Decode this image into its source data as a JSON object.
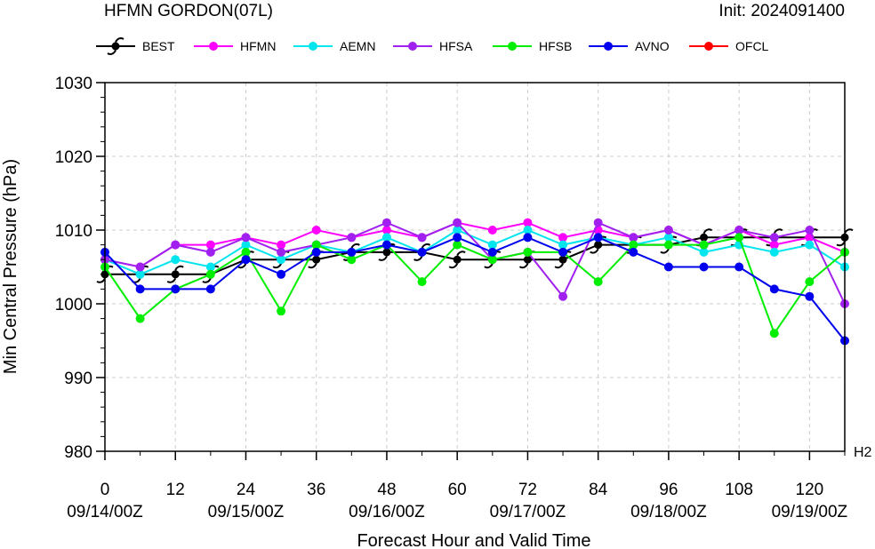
{
  "header": {
    "title": "HFMN GORDON(07L)",
    "init": "Init: 2024091400"
  },
  "chart_data": {
    "type": "line",
    "xlabel": "Forecast Hour and Valid Time",
    "ylabel": "Min Central Pressure (hPa)",
    "xlim": [
      0,
      126
    ],
    "ylim": [
      980,
      1030
    ],
    "x_ticks": [
      0,
      12,
      24,
      36,
      48,
      60,
      72,
      84,
      96,
      108,
      120
    ],
    "x_tick_labels": [
      "0",
      "12",
      "24",
      "36",
      "48",
      "60",
      "72",
      "84",
      "96",
      "108",
      "120"
    ],
    "date_labels": [
      {
        "x": 0,
        "label": "09/14/00Z"
      },
      {
        "x": 24,
        "label": "09/15/00Z"
      },
      {
        "x": 48,
        "label": "09/16/00Z"
      },
      {
        "x": 72,
        "label": "09/17/00Z"
      },
      {
        "x": 96,
        "label": "09/18/00Z"
      },
      {
        "x": 120,
        "label": "09/19/00Z"
      }
    ],
    "y_ticks": [
      980,
      990,
      1000,
      1010,
      1020,
      1030
    ],
    "y_tick_labels": [
      "980",
      "990",
      "1000",
      "1010",
      "1020",
      "1030"
    ],
    "corner_label": "H2",
    "grid": true,
    "legend_position": "top",
    "series": [
      {
        "name": "BEST",
        "color": "#000000",
        "marker": "hurricane-icon",
        "x": [
          0,
          6,
          12,
          18,
          24,
          30,
          36,
          42,
          48,
          54,
          60,
          66,
          72,
          78,
          84,
          90,
          96,
          102,
          108,
          114,
          120,
          126
        ],
        "values": [
          1004,
          1004,
          1004,
          1004,
          1006,
          1006,
          1006,
          1007,
          1007,
          1007,
          1006,
          1006,
          1006,
          1006,
          1008,
          1008,
          1008,
          1009,
          1009,
          1009,
          1009,
          1009
        ]
      },
      {
        "name": "HFMN",
        "color": "#ff00ff",
        "marker": "circle",
        "x": [
          0,
          6,
          12,
          18,
          24,
          30,
          36,
          42,
          48,
          54,
          60,
          66,
          72,
          78,
          84,
          90,
          96,
          102,
          108,
          114,
          120,
          126
        ],
        "values": [
          1006,
          1005,
          1008,
          1008,
          1009,
          1008,
          1010,
          1009,
          1010,
          1009,
          1011,
          1010,
          1011,
          1009,
          1010,
          1009,
          1010,
          1008,
          1010,
          1008,
          1009,
          1007
        ]
      },
      {
        "name": "AEMN",
        "color": "#00e5ee",
        "marker": "circle",
        "x": [
          0,
          6,
          12,
          18,
          24,
          30,
          36,
          42,
          48,
          54,
          60,
          66,
          72,
          78,
          84,
          90,
          96,
          102,
          108,
          114,
          120,
          126
        ],
        "values": [
          1006,
          1004,
          1006,
          1005,
          1008,
          1006,
          1008,
          1007,
          1009,
          1007,
          1010,
          1008,
          1010,
          1008,
          1009,
          1008,
          1009,
          1007,
          1008,
          1007,
          1008,
          1005
        ]
      },
      {
        "name": "HFSA",
        "color": "#a020f0",
        "marker": "circle",
        "x": [
          0,
          6,
          12,
          18,
          24,
          30,
          36,
          42,
          48,
          54,
          60,
          66,
          72,
          78,
          84,
          90,
          96,
          102,
          108,
          114,
          120,
          126
        ],
        "values": [
          1006,
          1005,
          1008,
          1007,
          1009,
          1007,
          1008,
          1009,
          1011,
          1009,
          1011,
          1006,
          1007,
          1001,
          1011,
          1009,
          1010,
          1008,
          1010,
          1009,
          1010,
          1000
        ]
      },
      {
        "name": "HFSB",
        "color": "#00ee00",
        "marker": "circle",
        "x": [
          0,
          6,
          12,
          18,
          24,
          30,
          36,
          42,
          48,
          54,
          60,
          66,
          72,
          78,
          84,
          90,
          96,
          102,
          108,
          114,
          120,
          126
        ],
        "values": [
          1005,
          998,
          1002,
          1004,
          1007,
          999,
          1008,
          1006,
          1008,
          1003,
          1008,
          1006,
          1007,
          1007,
          1003,
          1008,
          1008,
          1008,
          1009,
          996,
          1003,
          1007
        ]
      },
      {
        "name": "AVNO",
        "color": "#0000ee",
        "marker": "circle",
        "x": [
          0,
          6,
          12,
          18,
          24,
          30,
          36,
          42,
          48,
          54,
          60,
          66,
          72,
          78,
          84,
          90,
          96,
          102,
          108,
          114,
          120,
          126
        ],
        "values": [
          1007,
          1002,
          1002,
          1002,
          1006,
          1004,
          1007,
          1007,
          1008,
          1007,
          1009,
          1007,
          1009,
          1007,
          1009,
          1007,
          1005,
          1005,
          1005,
          1002,
          1001,
          995
        ]
      },
      {
        "name": "OFCL",
        "color": "#ff0000",
        "marker": "circle",
        "x": [],
        "values": []
      }
    ]
  }
}
